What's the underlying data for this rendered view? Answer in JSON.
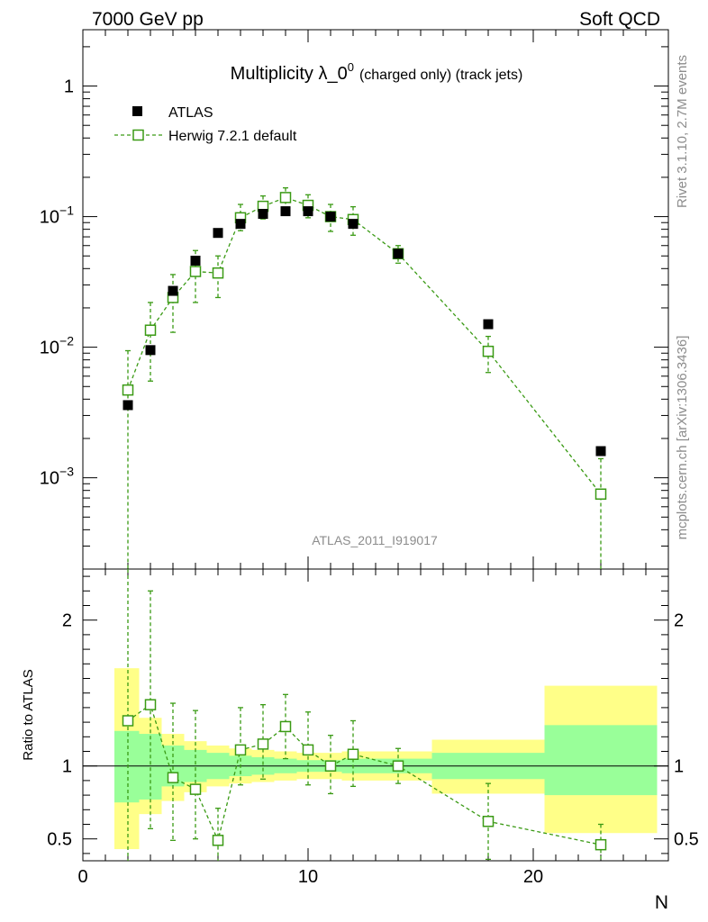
{
  "header": {
    "left": "7000 GeV pp",
    "right": "Soft QCD"
  },
  "side_labels": {
    "rivet": "Rivet 3.1.10,  2.7M events",
    "mcplots": "mcplots.cern.ch [arXiv:1306.3436]"
  },
  "chart_data": {
    "type": "scatter",
    "title_main": "Multiplicity λ_0",
    "title_sup": "0",
    "title_sub": "(charged only) (track jets)",
    "analysis_id": "ATLAS_2011_I919017",
    "xlabel": "N",
    "ylabel_ratio": "Ratio to ATLAS",
    "xlim": [
      0,
      26
    ],
    "ylim_main": [
      0.0002,
      2.7
    ],
    "ylim_ratio": [
      0.35,
      2.35
    ],
    "x_ticks": [
      "0",
      "10",
      "20"
    ],
    "y_ticks_main": [
      "10^-3",
      "10^-2",
      "10^-1",
      "1"
    ],
    "y_ticks_ratio": [
      "0.5",
      "1",
      "2"
    ],
    "legend": [
      {
        "name": "ATLAS",
        "marker": "filled-square",
        "color": "#000000"
      },
      {
        "name": "Herwig 7.2.1 default",
        "marker": "open-square-dashed",
        "color": "#3a9a14"
      }
    ],
    "atlas": {
      "x": [
        2,
        3,
        4,
        5,
        6,
        7,
        8,
        9,
        10,
        11,
        12,
        14,
        18,
        23
      ],
      "y": [
        0.0036,
        0.0095,
        0.027,
        0.046,
        0.075,
        0.088,
        0.105,
        0.11,
        0.11,
        0.1,
        0.088,
        0.052,
        0.015,
        0.0016
      ]
    },
    "herwig": {
      "x": [
        2,
        3,
        4,
        5,
        6,
        7,
        8,
        9,
        10,
        11,
        12,
        14,
        18,
        23
      ],
      "y": [
        0.0047,
        0.0135,
        0.024,
        0.038,
        0.037,
        0.098,
        0.12,
        0.14,
        0.122,
        0.1,
        0.095,
        0.052,
        0.0093,
        0.00075
      ],
      "y_low": [
        0.0002,
        0.0055,
        0.013,
        0.022,
        0.024,
        0.078,
        0.096,
        0.118,
        0.098,
        0.077,
        0.072,
        0.044,
        0.0064,
        0.0002
      ],
      "y_high": [
        0.0094,
        0.022,
        0.036,
        0.055,
        0.05,
        0.124,
        0.144,
        0.166,
        0.147,
        0.124,
        0.119,
        0.06,
        0.0121,
        0.0014
      ]
    },
    "ratio": {
      "x": [
        2,
        3,
        4,
        5,
        6,
        7,
        8,
        9,
        10,
        11,
        12,
        14,
        18,
        23
      ],
      "y": [
        1.31,
        1.42,
        0.92,
        0.84,
        0.49,
        1.11,
        1.15,
        1.27,
        1.11,
        1.0,
        1.08,
        1.0,
        0.62,
        0.46
      ],
      "y_low": [
        0.05,
        0.57,
        0.49,
        0.5,
        0.35,
        0.87,
        0.91,
        1.05,
        0.87,
        0.81,
        0.86,
        0.88,
        0.36,
        0.35
      ],
      "y_high": [
        2.35,
        2.2,
        1.43,
        1.38,
        0.71,
        1.4,
        1.42,
        1.49,
        1.37,
        1.21,
        1.31,
        1.12,
        0.88,
        0.6
      ]
    },
    "bands": [
      {
        "x0": 1.4,
        "x1": 2.5,
        "stat_lo": 0.75,
        "stat_hi": 1.24,
        "tot_lo": 0.43,
        "tot_hi": 1.67
      },
      {
        "x0": 2.5,
        "x1": 3.5,
        "stat_lo": 0.77,
        "stat_hi": 1.22,
        "tot_lo": 0.67,
        "tot_hi": 1.33
      },
      {
        "x0": 3.5,
        "x1": 4.5,
        "stat_lo": 0.86,
        "stat_hi": 1.14,
        "tot_lo": 0.76,
        "tot_hi": 1.22
      },
      {
        "x0": 4.5,
        "x1": 5.5,
        "stat_lo": 0.89,
        "stat_hi": 1.11,
        "tot_lo": 0.82,
        "tot_hi": 1.17
      },
      {
        "x0": 5.5,
        "x1": 6.5,
        "stat_lo": 0.91,
        "stat_hi": 1.09,
        "tot_lo": 0.86,
        "tot_hi": 1.14
      },
      {
        "x0": 6.5,
        "x1": 7.5,
        "stat_lo": 0.93,
        "stat_hi": 1.07,
        "tot_lo": 0.88,
        "tot_hi": 1.12
      },
      {
        "x0": 7.5,
        "x1": 8.5,
        "stat_lo": 0.94,
        "stat_hi": 1.06,
        "tot_lo": 0.89,
        "tot_hi": 1.11
      },
      {
        "x0": 8.5,
        "x1": 9.5,
        "stat_lo": 0.95,
        "stat_hi": 1.05,
        "tot_lo": 0.9,
        "tot_hi": 1.1
      },
      {
        "x0": 9.5,
        "x1": 10.5,
        "stat_lo": 0.96,
        "stat_hi": 1.04,
        "tot_lo": 0.91,
        "tot_hi": 1.09
      },
      {
        "x0": 10.5,
        "x1": 11.5,
        "stat_lo": 0.96,
        "stat_hi": 1.04,
        "tot_lo": 0.91,
        "tot_hi": 1.09
      },
      {
        "x0": 11.5,
        "x1": 12.5,
        "stat_lo": 0.95,
        "stat_hi": 1.05,
        "tot_lo": 0.9,
        "tot_hi": 1.1
      },
      {
        "x0": 12.5,
        "x1": 15.5,
        "stat_lo": 0.95,
        "stat_hi": 1.05,
        "tot_lo": 0.9,
        "tot_hi": 1.1
      },
      {
        "x0": 15.5,
        "x1": 20.5,
        "stat_lo": 0.91,
        "stat_hi": 1.09,
        "tot_lo": 0.81,
        "tot_hi": 1.18
      },
      {
        "x0": 20.5,
        "x1": 25.5,
        "stat_lo": 0.8,
        "stat_hi": 1.28,
        "tot_lo": 0.54,
        "tot_hi": 1.55
      }
    ]
  },
  "colors": {
    "herwig": "#3a9a14",
    "atlas": "#000000",
    "band_stat": "#99ff99",
    "band_total": "#ffff88"
  }
}
